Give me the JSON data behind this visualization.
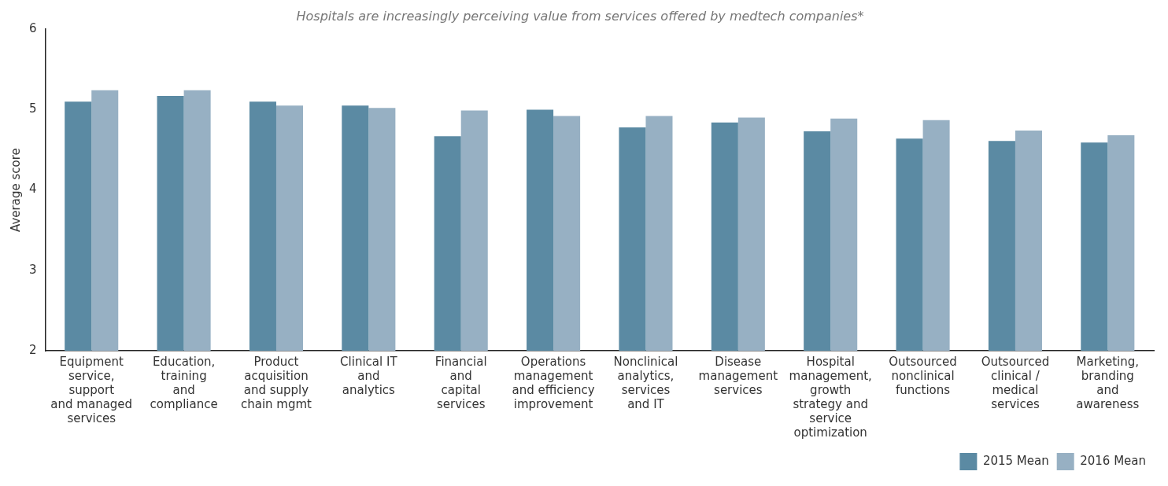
{
  "chart_data": {
    "type": "bar",
    "title": "Hospitals are increasingly perceiving value from services offered by medtech companies*",
    "ylabel": "Average score",
    "categories": [
      "Equipment\nservice,\nsupport\nand managed\nservices",
      "Education,\ntraining\nand\ncompliance",
      "Product\nacquisition\nand supply\nchain mgmt",
      "Clinical IT\nand\nanalytics",
      "Financial\nand\ncapital\nservices",
      "Operations\nmanagement\nand efficiency\nimprovement",
      "Nonclinical\nanalytics,\nservices\nand IT",
      "Disease\nmanagement\nservices",
      "Hospital\nmanagement,\ngrowth\nstrategy and\nservice\noptimization",
      "Outsourced\nnonclinical\nfunctions",
      "Outsourced\nclinical /\nmedical\nservices",
      "Marketing,\nbranding\nand\nawareness"
    ],
    "series": [
      {
        "name": "2015 Mean",
        "color": "#5b8aa3",
        "values": [
          5.1,
          5.17,
          5.1,
          5.05,
          4.67,
          5.0,
          4.78,
          4.84,
          4.73,
          4.64,
          4.61,
          4.59
        ]
      },
      {
        "name": "2016 Mean",
        "color": "#97b0c3",
        "values": [
          5.24,
          5.24,
          5.05,
          5.02,
          4.99,
          4.92,
          4.92,
          4.9,
          4.89,
          4.87,
          4.74,
          4.68
        ]
      }
    ],
    "ylim": [
      2,
      6
    ],
    "yticks": [
      2,
      3,
      4,
      5,
      6
    ],
    "grid": false,
    "legend": "bottom right"
  }
}
